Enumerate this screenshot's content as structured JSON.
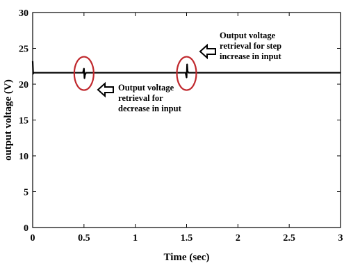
{
  "chart_data": {
    "type": "line",
    "xlabel": "Time (sec)",
    "ylabel": "output voltage (V)",
    "xlim": [
      0,
      3
    ],
    "ylim": [
      0,
      30
    ],
    "xticks": [
      0,
      0.5,
      1,
      1.5,
      2,
      2.5,
      3
    ],
    "xtick_labels": [
      "0",
      "0.5",
      "1",
      "1.5",
      "2",
      "2.5",
      "3"
    ],
    "yticks": [
      0,
      5,
      10,
      15,
      20,
      25,
      30
    ],
    "ytick_labels": [
      "0",
      "5",
      "10",
      "15",
      "20",
      "25",
      "30"
    ],
    "grid": false,
    "series": [
      {
        "color": "#000000",
        "x": [
          0,
          0.005,
          0.01,
          0.49,
          0.5,
          0.505,
          0.51,
          0.52,
          1.49,
          1.5,
          1.505,
          1.51,
          1.52,
          3.0
        ],
        "y": [
          23.2,
          21.5,
          21.6,
          21.6,
          22.2,
          20.8,
          21.3,
          21.6,
          21.6,
          20.9,
          22.8,
          21.8,
          21.6,
          21.6
        ]
      }
    ],
    "annotations": [
      {
        "id": "decrease",
        "lines": [
          "Output voltage",
          "retrieval for",
          "decrease in input"
        ],
        "target_x": 0.5,
        "target_y": 21.5
      },
      {
        "id": "increase",
        "lines": [
          "Output voltage",
          "retrieval for step",
          "increase in input"
        ],
        "target_x": 1.5,
        "target_y": 21.5
      }
    ],
    "circle_color": "#c0282d"
  }
}
